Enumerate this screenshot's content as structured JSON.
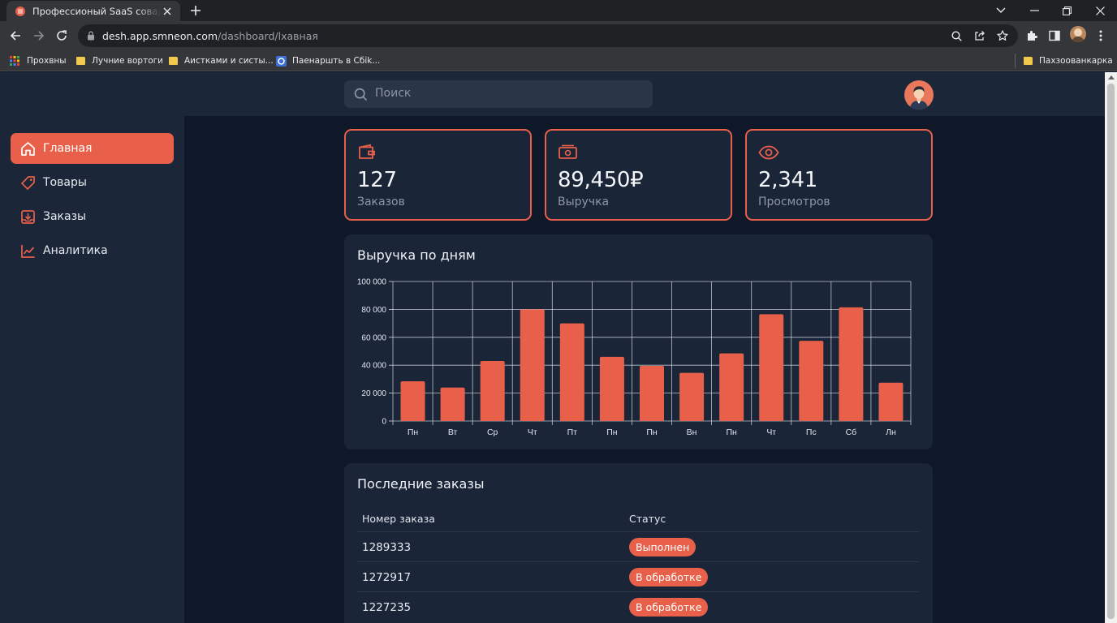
{
  "browser": {
    "tab_title": "Профессионый SaaS совадель...",
    "url_host": "desh.app.smneon.com",
    "url_path": "/dashboard/lхавная",
    "bookmarks": [
      {
        "label": "Прохвны"
      },
      {
        "label": "Лучние вортоги"
      },
      {
        "label": "Аистками и систы..."
      },
      {
        "label": "Паенаршть в Cбіk..."
      },
      {
        "label": "Пахзоованкарка"
      }
    ]
  },
  "search": {
    "placeholder": "Поиск"
  },
  "sidebar": {
    "items": [
      {
        "label": "Главная",
        "icon": "home-icon",
        "active": true
      },
      {
        "label": "Товары",
        "icon": "tag-icon"
      },
      {
        "label": "Заказы",
        "icon": "inbox-download-icon"
      },
      {
        "label": "Аналитика",
        "icon": "line-chart-icon"
      }
    ]
  },
  "kpis": [
    {
      "value": "127",
      "label": "Заказов",
      "icon": "wallet-icon"
    },
    {
      "value": "89,450₽",
      "label": "Выручка",
      "icon": "banknote-icon"
    },
    {
      "value": "2,341",
      "label": "Просмотров",
      "icon": "eye-icon"
    }
  ],
  "chart_card": {
    "title": "Выручка по дням"
  },
  "chart_data": {
    "type": "bar",
    "categories": [
      "Пн",
      "Вт",
      "Ср",
      "Чт",
      "Пт",
      "Пн",
      "Пн",
      "Вн",
      "Пн",
      "Чт",
      "Пс",
      "Сб",
      "Лн"
    ],
    "values": [
      28500,
      24000,
      43000,
      80000,
      70000,
      46000,
      39500,
      34500,
      48500,
      76500,
      57500,
      81500,
      27500
    ],
    "ylim": [
      0,
      100000
    ],
    "yticks": [
      0,
      20000,
      40000,
      60000,
      80000,
      100000
    ],
    "ytick_labels": [
      "0",
      "20 000",
      "40 000",
      "60 000",
      "80 000",
      "100 000"
    ],
    "grid": true,
    "bar_color": "#e8604a"
  },
  "orders": {
    "title": "Последние заказы",
    "columns": [
      "Номер заказа",
      "Статус"
    ],
    "rows": [
      {
        "id": "1289333",
        "status": "Выполнен"
      },
      {
        "id": "1272917",
        "status": "В обработке"
      },
      {
        "id": "1227235",
        "status": "В обработке"
      }
    ]
  },
  "colors": {
    "accent": "#e8604a",
    "panel": "#1a2538",
    "background": "#0f1828"
  }
}
